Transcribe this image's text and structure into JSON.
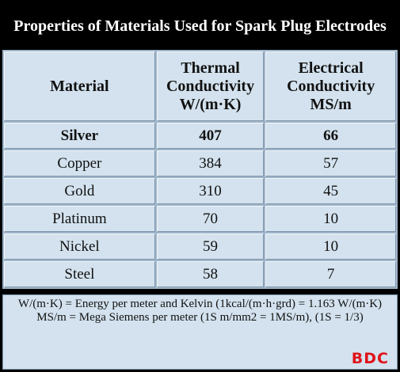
{
  "header": {
    "title": "Properties of Materials Used for Spark Plug Electrodes"
  },
  "table": {
    "columns": [
      "Material",
      "Thermal Conductivity W/(m·K)",
      "Electrical Conductivity MS/m"
    ],
    "rows": [
      [
        "Silver",
        "407",
        "66"
      ],
      [
        "Copper",
        "384",
        "57"
      ],
      [
        "Gold",
        "310",
        "45"
      ],
      [
        "Platinum",
        "70",
        "10"
      ],
      [
        "Nickel",
        "59",
        "10"
      ],
      [
        "Steel",
        "58",
        "7"
      ]
    ]
  },
  "notes": [
    "W/(m·K) = Energy per meter and Kelvin (1kcal/(m·h·grd) = 1.163 W/(m·K)",
    "MS/m = Mega Siemens per meter (1S m/mm2 = 1MS/m), (1S = 1/3)"
  ],
  "logo": "BDC"
}
